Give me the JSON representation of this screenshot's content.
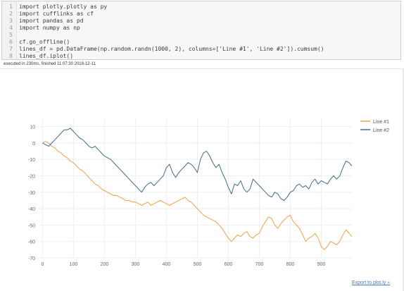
{
  "code_cell": {
    "lines": [
      {
        "num": "1",
        "text": "import plotly.plotly as py"
      },
      {
        "num": "2",
        "text": "import cufflinks as cf"
      },
      {
        "num": "3",
        "text": "import pandas as pd"
      },
      {
        "num": "4",
        "text": "import numpy as np"
      },
      {
        "num": "5",
        "text": ""
      },
      {
        "num": "6",
        "text": "cf.go_offline()"
      },
      {
        "num": "7",
        "text": "lines_df = pd.DataFrame(np.random.randn(1000, 2), columns=['Line #1', 'Line #2']).cumsum()"
      },
      {
        "num": "8",
        "text": "lines_df.iplot()"
      }
    ],
    "execution_info": "executed in 230ms, finished 11:07:30 2018-12-11"
  },
  "output": {
    "export_link": "Export to plot.ly »"
  },
  "colors": {
    "line1": "#f2a14a",
    "line2": "#3e6f86",
    "tick": "#666666",
    "grid": "#eeeeee"
  },
  "chart_data": {
    "type": "line",
    "x_ticks": [
      "0",
      "100",
      "200",
      "300",
      "400",
      "500",
      "600",
      "700",
      "800",
      "900"
    ],
    "y_ticks": [
      "10",
      "0",
      "-10",
      "-20",
      "-30",
      "-40",
      "-50",
      "-60",
      "-70"
    ],
    "xlim": [
      -10,
      999
    ],
    "ylim": [
      -70,
      15
    ],
    "legend_position": "top-right",
    "grid": true,
    "series": [
      {
        "name": "Line #1",
        "x": [
          0,
          10,
          20,
          30,
          40,
          50,
          60,
          70,
          80,
          90,
          100,
          110,
          120,
          130,
          140,
          150,
          160,
          170,
          180,
          190,
          200,
          210,
          220,
          230,
          240,
          250,
          260,
          270,
          280,
          290,
          300,
          310,
          320,
          330,
          340,
          350,
          360,
          370,
          380,
          390,
          400,
          410,
          420,
          430,
          440,
          450,
          460,
          470,
          480,
          490,
          500,
          510,
          520,
          530,
          540,
          550,
          560,
          570,
          580,
          590,
          600,
          610,
          620,
          630,
          640,
          650,
          660,
          670,
          680,
          690,
          700,
          710,
          720,
          730,
          740,
          750,
          760,
          770,
          780,
          790,
          800,
          810,
          820,
          830,
          840,
          850,
          860,
          870,
          880,
          890,
          900,
          910,
          920,
          930,
          940,
          950,
          960,
          970,
          980,
          990,
          999
        ],
        "values": [
          0,
          1,
          0,
          -2,
          -3,
          -5,
          -6,
          -8,
          -9,
          -11,
          -12,
          -14,
          -16,
          -17,
          -19,
          -21,
          -23,
          -25,
          -26,
          -28,
          -29,
          -30,
          -31,
          -32,
          -32,
          -33,
          -34,
          -35,
          -35,
          -36,
          -36,
          -37,
          -38,
          -37,
          -36,
          -38,
          -37,
          -36,
          -35,
          -36,
          -37,
          -38,
          -37,
          -36,
          -35,
          -34,
          -33,
          -35,
          -36,
          -38,
          -40,
          -42,
          -44,
          -45,
          -46,
          -47,
          -48,
          -50,
          -52,
          -55,
          -58,
          -60,
          -58,
          -56,
          -57,
          -55,
          -54,
          -57,
          -58,
          -56,
          -55,
          -51,
          -48,
          -45,
          -46,
          -50,
          -52,
          -49,
          -47,
          -45,
          -44,
          -48,
          -50,
          -52,
          -56,
          -60,
          -58,
          -57,
          -55,
          -58,
          -63,
          -65,
          -63,
          -60,
          -61,
          -62,
          -60,
          -56,
          -53,
          -55,
          -57
        ]
      },
      {
        "name": "Line #2",
        "x": [
          0,
          10,
          20,
          30,
          40,
          50,
          60,
          70,
          80,
          90,
          100,
          110,
          120,
          130,
          140,
          150,
          160,
          170,
          180,
          190,
          200,
          210,
          220,
          230,
          240,
          250,
          260,
          270,
          280,
          290,
          300,
          310,
          320,
          330,
          340,
          350,
          360,
          370,
          380,
          390,
          400,
          410,
          420,
          430,
          440,
          450,
          460,
          470,
          480,
          490,
          500,
          510,
          520,
          530,
          540,
          550,
          560,
          570,
          580,
          590,
          600,
          610,
          620,
          630,
          640,
          650,
          660,
          670,
          680,
          690,
          700,
          710,
          720,
          730,
          740,
          750,
          760,
          770,
          780,
          790,
          800,
          810,
          820,
          830,
          840,
          850,
          860,
          870,
          880,
          890,
          900,
          910,
          920,
          930,
          940,
          950,
          960,
          970,
          980,
          990,
          999
        ],
        "values": [
          0,
          -1,
          -2,
          0,
          2,
          4,
          6,
          8,
          8,
          9,
          7,
          5,
          3,
          2,
          0,
          -2,
          -3,
          -2,
          -4,
          -6,
          -8,
          -9,
          -10,
          -12,
          -14,
          -16,
          -18,
          -20,
          -22,
          -24,
          -26,
          -28,
          -30,
          -27,
          -25,
          -24,
          -26,
          -24,
          -22,
          -20,
          -15,
          -13,
          -18,
          -21,
          -18,
          -16,
          -14,
          -12,
          -13,
          -15,
          -18,
          -10,
          -6,
          -5,
          -8,
          -12,
          -15,
          -13,
          -18,
          -22,
          -27,
          -31,
          -25,
          -26,
          -23,
          -28,
          -30,
          -28,
          -22,
          -24,
          -26,
          -28,
          -30,
          -32,
          -33,
          -30,
          -31,
          -34,
          -35,
          -33,
          -30,
          -29,
          -26,
          -25,
          -27,
          -26,
          -28,
          -24,
          -22,
          -25,
          -23,
          -24,
          -25,
          -22,
          -20,
          -22,
          -20,
          -15,
          -11,
          -12,
          -14
        ]
      }
    ]
  }
}
